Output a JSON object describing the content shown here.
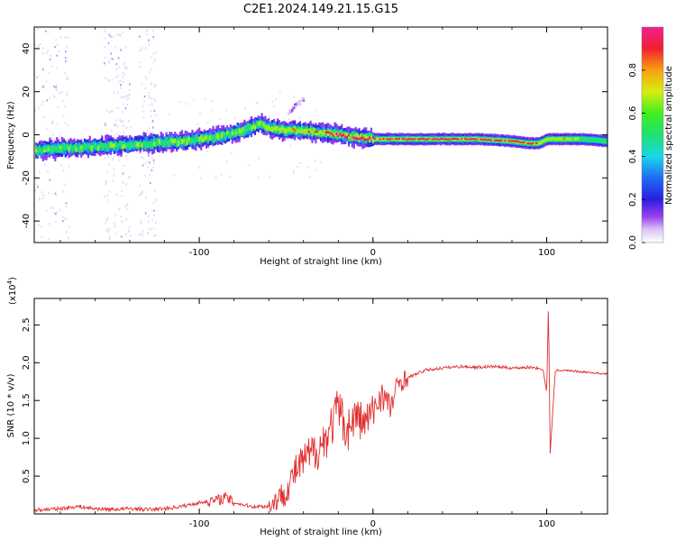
{
  "figure": {
    "title": "C2E1.2024.149.21.15.G15"
  },
  "chart_data": [
    {
      "type": "heatmap",
      "xlabel": "Height of straight line (km)",
      "ylabel": "Frequency (Hz)",
      "xlim": [
        -195,
        135
      ],
      "ylim": [
        -50,
        50
      ],
      "xticks": [
        -100,
        0,
        100
      ],
      "xtick_labels": [
        "-100",
        "0",
        "100"
      ],
      "yticks": [
        -40,
        -20,
        0,
        20,
        40
      ],
      "ytick_labels": [
        "-40",
        "-20",
        "0",
        "20",
        "40"
      ],
      "colorbar": {
        "label": "Normalized spectral amplitude",
        "range": [
          0,
          1
        ],
        "ticks": [
          0,
          0.2,
          0.4,
          0.6,
          0.8
        ],
        "tick_labels": [
          "0.0",
          "0.2",
          "0.4",
          "0.6",
          "0.8"
        ],
        "colormap": "rainbow"
      },
      "ridge": {
        "x": [
          -195,
          -170,
          -150,
          -130,
          -110,
          -90,
          -75,
          -65,
          -60,
          -50,
          -40,
          -30,
          -20,
          -10,
          0,
          20,
          40,
          60,
          80,
          90,
          95,
          100,
          110,
          120,
          135
        ],
        "y": [
          -7,
          -6,
          -5,
          -4,
          -3,
          -1,
          2,
          5,
          3,
          2,
          2,
          1,
          0,
          -1,
          -2,
          -2,
          -2,
          -2,
          -3,
          -4,
          -4,
          -2,
          -2,
          -2,
          -3
        ],
        "amplitude": [
          0.55,
          0.6,
          0.6,
          0.6,
          0.6,
          0.6,
          0.65,
          0.7,
          0.7,
          0.75,
          0.8,
          0.85,
          0.9,
          0.95,
          0.95,
          0.95,
          0.95,
          0.95,
          0.95,
          0.9,
          0.8,
          0.7,
          0.8,
          0.55,
          0.5
        ]
      },
      "branch": {
        "x": [
          -50,
          -45,
          -40
        ],
        "y": [
          10,
          14,
          17
        ]
      }
    },
    {
      "type": "line",
      "xlabel": "Height of straight line (km)",
      "ylabel": "SNR (10 * v/v)",
      "yscale_label": "(x10",
      "yscale_exponent": "4",
      "xlim": [
        -195,
        135
      ],
      "ylim": [
        0,
        2.85
      ],
      "xticks": [
        -100,
        0,
        100
      ],
      "xtick_labels": [
        "-100",
        "0",
        "100"
      ],
      "yticks": [
        0.5,
        1.0,
        1.5,
        2.0,
        2.5
      ],
      "ytick_labels": [
        "0.5",
        "1.0",
        "1.5",
        "2.0",
        "2.5"
      ],
      "color": "#e03030",
      "series": [
        {
          "x": [
            -195,
            -180,
            -170,
            -160,
            -150,
            -140,
            -130,
            -120,
            -110,
            -100,
            -90,
            -85,
            -80,
            -70,
            -60,
            -50,
            -45,
            -40,
            -35,
            -30,
            -25,
            -20,
            -15,
            -10,
            -5,
            0,
            5,
            10,
            15,
            20,
            25,
            30,
            40,
            50,
            60,
            70,
            80,
            90,
            95,
            98,
            100,
            101,
            102,
            105,
            110,
            120,
            135
          ],
          "y": [
            0.05,
            0.07,
            0.1,
            0.07,
            0.06,
            0.07,
            0.06,
            0.07,
            0.1,
            0.15,
            0.18,
            0.22,
            0.15,
            0.1,
            0.1,
            0.3,
            0.55,
            0.7,
            0.8,
            0.9,
            1.1,
            1.4,
            1.1,
            1.3,
            1.2,
            1.35,
            1.6,
            1.4,
            1.75,
            1.8,
            1.85,
            1.9,
            1.93,
            1.95,
            1.94,
            1.95,
            1.93,
            1.94,
            1.93,
            1.9,
            1.6,
            2.8,
            0.8,
            1.9,
            1.9,
            1.88,
            1.85
          ]
        }
      ]
    }
  ]
}
